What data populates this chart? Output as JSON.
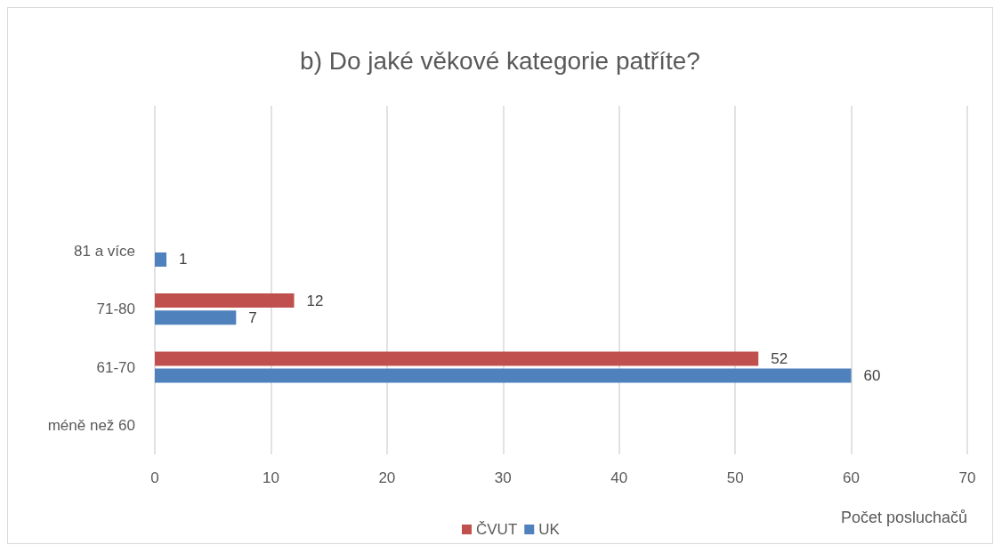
{
  "chart_data": {
    "type": "bar",
    "orientation": "horizontal",
    "title": "b) Do jaké věkové kategorie patříte?",
    "xlabel": "Počet posluchačů",
    "categories": [
      null,
      null,
      "81 a více",
      "71-80",
      "61-70",
      "méně než 60"
    ],
    "series": [
      {
        "name": "ČVUT",
        "color": "#c0504d",
        "values": [
          null,
          null,
          null,
          12,
          52,
          null
        ]
      },
      {
        "name": "UK",
        "color": "#4f81bd",
        "values": [
          null,
          null,
          1,
          7,
          60,
          null
        ]
      }
    ],
    "xlim": [
      0,
      70
    ],
    "xticks": [
      0,
      10,
      20,
      30,
      40,
      50,
      60,
      70
    ],
    "grid": "x",
    "legend": "bottom",
    "data_labels": true
  }
}
